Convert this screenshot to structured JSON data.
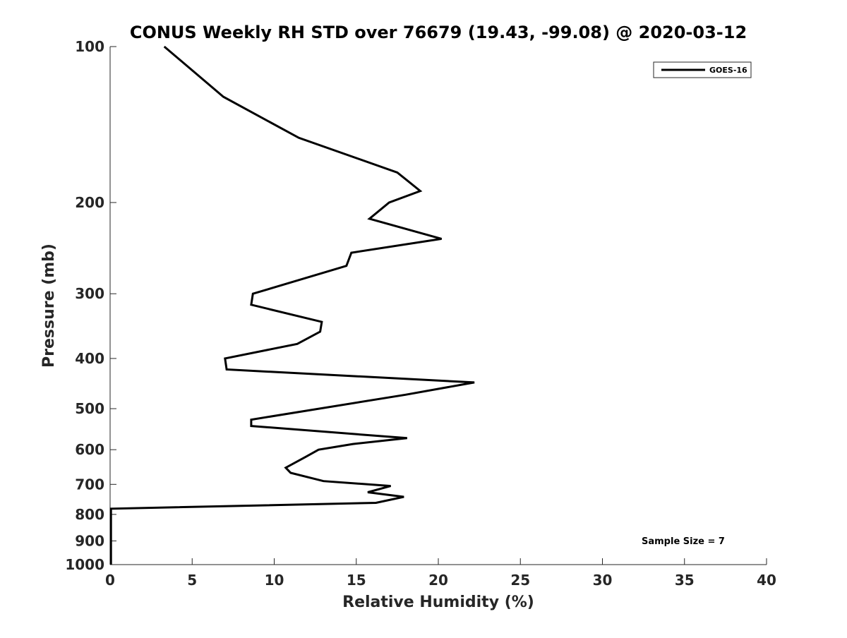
{
  "chart_data": {
    "type": "line",
    "title": "CONUS Weekly RH STD over 76679 (19.43, -99.08) @ 2020-03-12",
    "xlabel": "Relative Humidity (%)",
    "ylabel": "Pressure (mb)",
    "xlim": [
      0,
      40
    ],
    "ylim": [
      100,
      1000
    ],
    "yscale": "log",
    "yreversed": true,
    "x_ticks": [
      0,
      5,
      10,
      15,
      20,
      25,
      30,
      35,
      40
    ],
    "y_ticks": [
      100,
      200,
      300,
      400,
      500,
      600,
      700,
      800,
      900,
      1000
    ],
    "grid": false,
    "legend": {
      "position": "top-right",
      "entries": [
        "GOES-16"
      ]
    },
    "annotation": "Sample Size = 7",
    "series": [
      {
        "name": "GOES-16",
        "color": "#000000",
        "points": [
          [
            3.3,
            100
          ],
          [
            6.9,
            125
          ],
          [
            11.5,
            150
          ],
          [
            17.5,
            175
          ],
          [
            18.9,
            190
          ],
          [
            17.0,
            200
          ],
          [
            15.8,
            215
          ],
          [
            20.2,
            235
          ],
          [
            14.7,
            250
          ],
          [
            14.4,
            265
          ],
          [
            8.7,
            300
          ],
          [
            8.6,
            315
          ],
          [
            12.9,
            340
          ],
          [
            12.8,
            355
          ],
          [
            11.4,
            375
          ],
          [
            7.0,
            400
          ],
          [
            7.1,
            420
          ],
          [
            22.2,
            445
          ],
          [
            18.0,
            470
          ],
          [
            8.6,
            525
          ],
          [
            8.6,
            540
          ],
          [
            18.1,
            570
          ],
          [
            14.8,
            585
          ],
          [
            12.7,
            600
          ],
          [
            11.9,
            620
          ],
          [
            10.7,
            650
          ],
          [
            11.0,
            665
          ],
          [
            13.0,
            690
          ],
          [
            17.1,
            705
          ],
          [
            15.7,
            725
          ],
          [
            17.9,
            740
          ],
          [
            16.2,
            760
          ],
          [
            0.05,
            780
          ],
          [
            0.05,
            1000
          ]
        ]
      }
    ]
  }
}
